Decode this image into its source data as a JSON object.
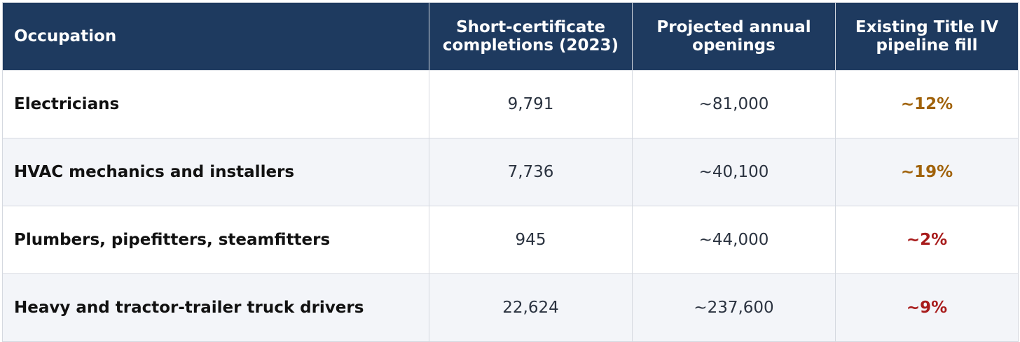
{
  "table": {
    "header": [
      "Occupation",
      "Short-certificate completions (2023)",
      "Projected annual openings",
      "Existing Title IV pipeline fill"
    ],
    "rows": [
      [
        "Electricians",
        "9,791",
        "~81,000",
        "~12%"
      ],
      [
        "HVAC mechanics and installers",
        "7,736",
        "~40,100",
        "~19%"
      ],
      [
        "Plumbers, pipefitters, steamfitters",
        "945",
        "~44,000",
        "~2%"
      ],
      [
        "Heavy and tractor-trailer truck drivers",
        "22,624",
        "~237,600",
        "~9%"
      ]
    ]
  }
}
